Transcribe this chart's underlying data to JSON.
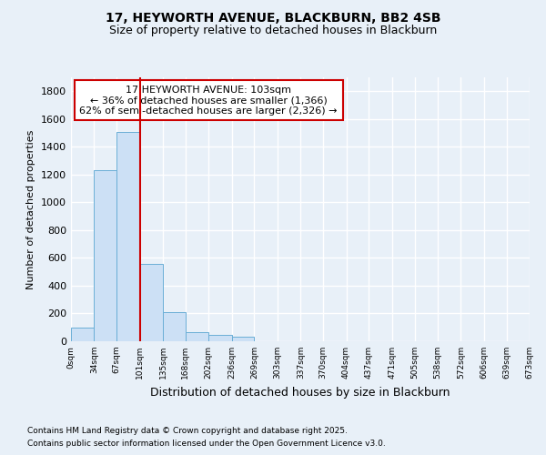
{
  "title": "17, HEYWORTH AVENUE, BLACKBURN, BB2 4SB",
  "subtitle": "Size of property relative to detached houses in Blackburn",
  "xlabel": "Distribution of detached houses by size in Blackburn",
  "ylabel": "Number of detached properties",
  "footnote1": "Contains HM Land Registry data © Crown copyright and database right 2025.",
  "footnote2": "Contains public sector information licensed under the Open Government Licence v3.0.",
  "annotation_line1": "17 HEYWORTH AVENUE: 103sqm",
  "annotation_line2": "← 36% of detached houses are smaller (1,366)",
  "annotation_line3": "62% of semi-detached houses are larger (2,326) →",
  "bar_edges": [
    0,
    34,
    67,
    101,
    135,
    168,
    202,
    236,
    269,
    303,
    337,
    370,
    404,
    437,
    471,
    505,
    538,
    572,
    606,
    639,
    673
  ],
  "bar_heights": [
    100,
    1230,
    1510,
    560,
    210,
    65,
    45,
    30,
    0,
    0,
    0,
    0,
    0,
    0,
    0,
    0,
    0,
    0,
    0,
    0
  ],
  "bar_color": "#cce0f5",
  "bar_edge_color": "#6aaed6",
  "vline_color": "#cc0000",
  "vline_x": 101,
  "annotation_box_color": "#cc0000",
  "bg_color": "#e8f0f8",
  "plot_bg_color": "#e8f0f8",
  "grid_color": "#ffffff",
  "ylim": [
    0,
    1900
  ],
  "yticks": [
    0,
    200,
    400,
    600,
    800,
    1000,
    1200,
    1400,
    1600,
    1800
  ],
  "tick_labels": [
    "0sqm",
    "34sqm",
    "67sqm",
    "101sqm",
    "135sqm",
    "168sqm",
    "202sqm",
    "236sqm",
    "269sqm",
    "303sqm",
    "337sqm",
    "370sqm",
    "404sqm",
    "437sqm",
    "471sqm",
    "505sqm",
    "538sqm",
    "572sqm",
    "606sqm",
    "639sqm",
    "673sqm"
  ]
}
